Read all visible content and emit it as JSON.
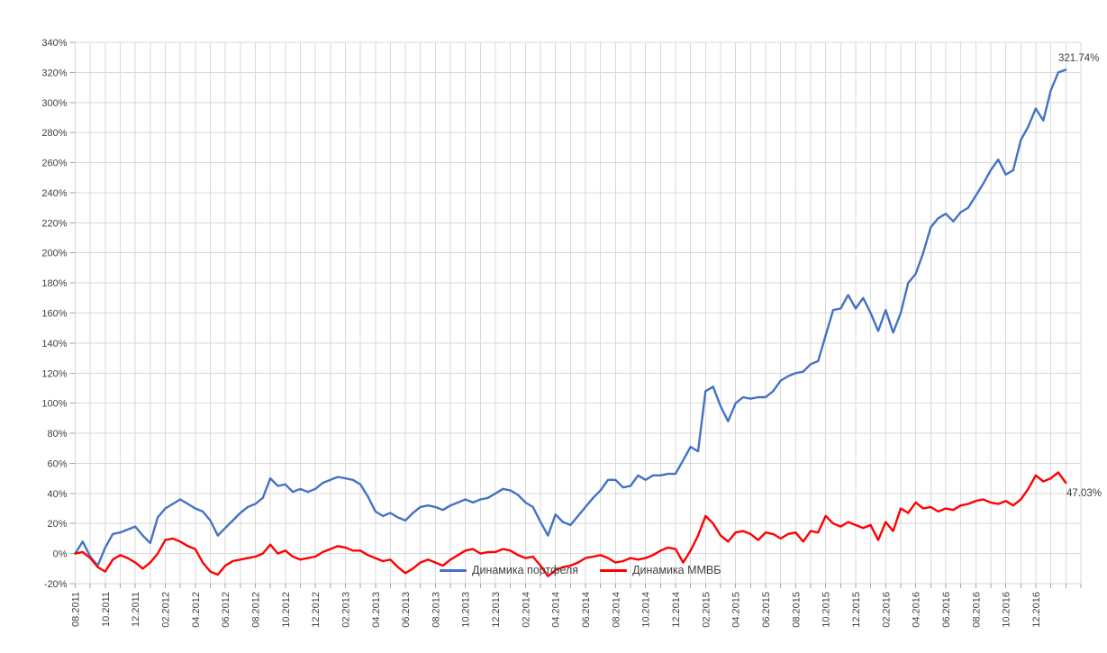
{
  "chart_data": {
    "type": "line",
    "title": "",
    "grid": true,
    "legend_position": "bottom-center-inside",
    "sampling": "semi-monthly points from 08.2011 to 02.2017",
    "y_axis": {
      "unit": "%",
      "min": -20,
      "max": 340,
      "step": 20,
      "tick_labels": [
        "340%",
        "320%",
        "300%",
        "280%",
        "260%",
        "240%",
        "220%",
        "200%",
        "180%",
        "160%",
        "140%",
        "120%",
        "100%",
        "80%",
        "60%",
        "40%",
        "20%",
        "0%",
        "-20%"
      ]
    },
    "x_axis": {
      "tick_labels": [
        "08.2011",
        "10.2011",
        "12.2011",
        "02.2012",
        "04.2012",
        "06.2012",
        "08.2012",
        "10.2012",
        "12.2012",
        "02.2013",
        "04.2013",
        "06.2013",
        "08.2013",
        "10.2013",
        "12.2013",
        "02.2014",
        "04.2014",
        "06.2014",
        "08.2014",
        "10.2014",
        "12.2014",
        "02.2015",
        "04.2015",
        "06.2015",
        "08.2015",
        "10.2015",
        "12.2015",
        "02.2016",
        "04.2016",
        "06.2016",
        "08.2016",
        "10.2016",
        "12.2016"
      ],
      "months_per_label": 2,
      "gridlines_every_months": 1
    },
    "series": [
      {
        "name": "Динамика портфеля",
        "color": "#4472C4",
        "end_label": "321.74%",
        "final_value": 321.74,
        "values": [
          0,
          8,
          -2,
          -8,
          4,
          13,
          14,
          16,
          18,
          12,
          7,
          24,
          30,
          33,
          36,
          33,
          30,
          28,
          22,
          12,
          17,
          22,
          27,
          31,
          33,
          37,
          50,
          45,
          46,
          41,
          43,
          41,
          43,
          47,
          49,
          51,
          50,
          49,
          46,
          38,
          28,
          25,
          27,
          24,
          22,
          27,
          31,
          32,
          31,
          29,
          32,
          34,
          36,
          34,
          36,
          37,
          40,
          43,
          42,
          39,
          34,
          31,
          21,
          12,
          26,
          21,
          19,
          25,
          31,
          37,
          42,
          49,
          49,
          44,
          45,
          52,
          49,
          52,
          52,
          53,
          53,
          62,
          71,
          68,
          108,
          111,
          98,
          88,
          100,
          104,
          103,
          104,
          104,
          108,
          115,
          118,
          120,
          121,
          126,
          128,
          145,
          162,
          163,
          172,
          163,
          170,
          160,
          148,
          162,
          147,
          160,
          180,
          186,
          200,
          217,
          223,
          226,
          221,
          227,
          230,
          238,
          246,
          255,
          262,
          252,
          255,
          275,
          284,
          296,
          288,
          308,
          320,
          321.74
        ]
      },
      {
        "name": "Динамика ММВБ",
        "color": "#FF0000",
        "end_label": "47.03%",
        "final_value": 47.03,
        "values": [
          0,
          1,
          -3,
          -9,
          -12,
          -4,
          -1,
          -3,
          -6,
          -10,
          -6,
          0,
          9,
          10,
          8,
          5,
          3,
          -6,
          -12,
          -14,
          -8,
          -5,
          -4,
          -3,
          -2,
          0,
          6,
          0,
          2,
          -2,
          -4,
          -3,
          -2,
          1,
          3,
          5,
          4,
          2,
          2,
          -1,
          -3,
          -5,
          -4,
          -9,
          -13,
          -10,
          -6,
          -4,
          -6,
          -8,
          -4,
          -1,
          2,
          3,
          0,
          1,
          1,
          3,
          2,
          -1,
          -3,
          -2,
          -8,
          -15,
          -11,
          -9,
          -8,
          -6,
          -3,
          -2,
          -1,
          -3,
          -6,
          -5,
          -3,
          -4,
          -3,
          -1,
          2,
          4,
          3,
          -6,
          2,
          12,
          25,
          20,
          12,
          8,
          14,
          15,
          13,
          9,
          14,
          13,
          10,
          13,
          14,
          8,
          15,
          14,
          25,
          20,
          18,
          21,
          19,
          17,
          19,
          9,
          21,
          15,
          30,
          27,
          34,
          30,
          31,
          28,
          30,
          29,
          32,
          33,
          35,
          36,
          34,
          33,
          35,
          32,
          36,
          43,
          52,
          48,
          50,
          54,
          47.03
        ]
      }
    ]
  },
  "colors": {
    "background": "#FFFFFF",
    "grid": "#D9D9D9",
    "tick": "#A6A6A6",
    "axis_text": "#404040",
    "data_label_text": "#3F3F3F"
  }
}
